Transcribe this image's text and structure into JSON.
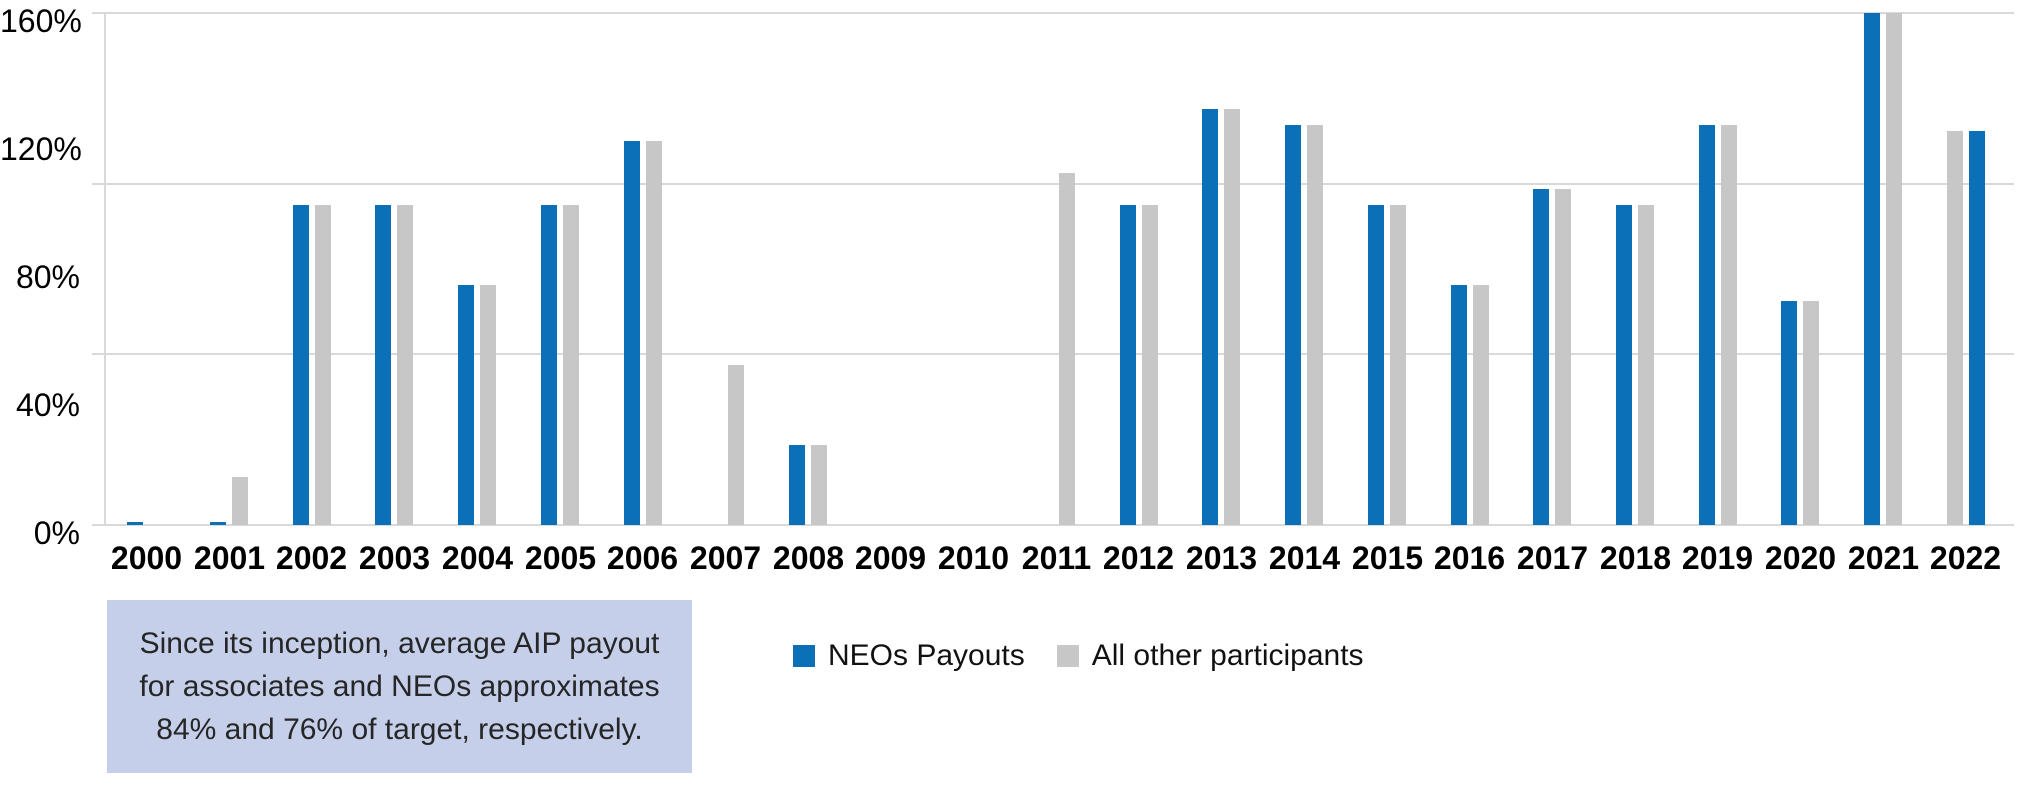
{
  "chart_data": {
    "type": "bar",
    "title": "",
    "xlabel": "",
    "ylabel": "",
    "categories": [
      "2000",
      "2001",
      "2002",
      "2003",
      "2004",
      "2005",
      "2006",
      "2007",
      "2008",
      "2009",
      "2010",
      "2011",
      "2012",
      "2013",
      "2014",
      "2015",
      "2016",
      "2017",
      "2018",
      "2019",
      "2020",
      "2021",
      "2022"
    ],
    "series": [
      {
        "name": "NEOs Payouts",
        "color": "#0b70b8",
        "values": [
          1,
          1,
          100,
          100,
          75,
          100,
          120,
          0,
          25,
          0,
          0,
          0,
          100,
          130,
          125,
          100,
          75,
          105,
          100,
          125,
          70,
          160,
          123
        ]
      },
      {
        "name": "All other participants",
        "color": "#c7c7c7",
        "values": [
          0,
          15,
          100,
          100,
          75,
          100,
          120,
          50,
          25,
          0,
          0,
          110,
          100,
          130,
          125,
          100,
          75,
          105,
          100,
          125,
          70,
          160,
          123
        ]
      }
    ],
    "ylim": [
      0,
      160
    ],
    "y_axis": {
      "unit": "%",
      "ticks": [
        {
          "label": "0%",
          "value": 0
        },
        {
          "label": "40%",
          "value": 40
        },
        {
          "label": "80%",
          "value": 80
        },
        {
          "label": "120%",
          "value": 120
        },
        {
          "label": "160%",
          "value": 160
        }
      ]
    },
    "gridline_values": [
      0,
      53.33,
      106.67,
      160
    ],
    "legend_position": "bottom",
    "swap_order_years": [
      "2022"
    ]
  },
  "legend": {
    "items": [
      {
        "label": "NEOs Payouts",
        "color": "#0b70b8"
      },
      {
        "label": "All other participants",
        "color": "#c7c7c7"
      }
    ]
  },
  "annotation": {
    "bg_color": "#c5cfe9",
    "lines": [
      "Since its inception, average AIP payout",
      "for associates and NEOs approximates",
      "84% and 76% of target, respectively."
    ]
  },
  "colors": {
    "bar_blue": "#0b70b8",
    "bar_gray": "#c7c7c7",
    "gridline": "#d9d9d9",
    "axis_text": "#000000",
    "annotation_bg": "#c5cfe9",
    "annotation_text": "#262626"
  }
}
